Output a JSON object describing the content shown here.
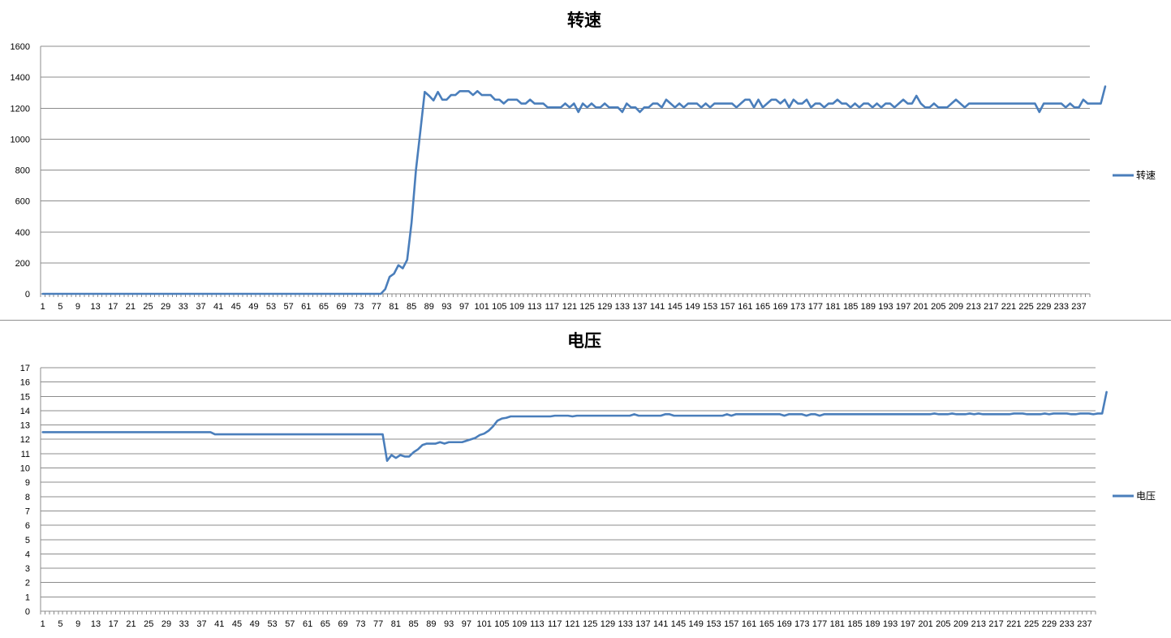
{
  "chart_data": [
    {
      "type": "line",
      "title": "转速",
      "ylim": [
        0,
        1600
      ],
      "yticks": [
        0,
        200,
        400,
        600,
        800,
        1000,
        1200,
        1400,
        1600
      ],
      "x_count": 239,
      "x_tick_step": 4,
      "legend": "right",
      "grid": true,
      "series": [
        {
          "name": "转速",
          "color": "#4a7ebb",
          "values": [
            0,
            0,
            0,
            0,
            0,
            0,
            0,
            0,
            0,
            0,
            0,
            0,
            0,
            0,
            0,
            0,
            0,
            0,
            0,
            0,
            0,
            0,
            0,
            0,
            0,
            0,
            0,
            0,
            0,
            0,
            0,
            0,
            0,
            0,
            0,
            0,
            0,
            0,
            0,
            0,
            0,
            0,
            0,
            0,
            0,
            0,
            0,
            0,
            0,
            0,
            0,
            0,
            0,
            0,
            0,
            0,
            0,
            0,
            0,
            0,
            0,
            0,
            0,
            0,
            0,
            0,
            0,
            0,
            0,
            0,
            0,
            0,
            0,
            0,
            0,
            0,
            0,
            0,
            30,
            110,
            130,
            185,
            165,
            220,
            460,
            800,
            1050,
            1305,
            1280,
            1250,
            1305,
            1255,
            1255,
            1285,
            1285,
            1310,
            1310,
            1310,
            1285,
            1310,
            1285,
            1285,
            1285,
            1255,
            1255,
            1230,
            1255,
            1255,
            1255,
            1230,
            1230,
            1255,
            1230,
            1230,
            1230,
            1205,
            1205,
            1205,
            1205,
            1230,
            1205,
            1230,
            1175,
            1230,
            1205,
            1230,
            1205,
            1205,
            1230,
            1205,
            1205,
            1205,
            1175,
            1230,
            1205,
            1205,
            1175,
            1205,
            1205,
            1230,
            1230,
            1205,
            1255,
            1230,
            1205,
            1230,
            1205,
            1230,
            1230,
            1230,
            1205,
            1230,
            1205,
            1230,
            1230,
            1230,
            1230,
            1230,
            1205,
            1230,
            1255,
            1255,
            1205,
            1255,
            1205,
            1230,
            1255,
            1255,
            1230,
            1255,
            1205,
            1255,
            1230,
            1230,
            1255,
            1205,
            1230,
            1230,
            1205,
            1230,
            1230,
            1255,
            1230,
            1230,
            1205,
            1230,
            1205,
            1230,
            1230,
            1205,
            1230,
            1205,
            1230,
            1230,
            1205,
            1230,
            1255,
            1230,
            1230,
            1280,
            1230,
            1205,
            1205,
            1230,
            1205,
            1205,
            1205,
            1230,
            1255,
            1230,
            1205,
            1230,
            1230,
            1230,
            1230,
            1230,
            1230,
            1230,
            1230,
            1230,
            1230,
            1230,
            1230,
            1230,
            1230,
            1230,
            1230,
            1175,
            1230,
            1230,
            1230,
            1230,
            1230,
            1205,
            1230,
            1205,
            1205,
            1255,
            1230,
            1230,
            1230,
            1230,
            1340
          ]
        }
      ]
    },
    {
      "type": "line",
      "title": "电压",
      "ylim": [
        0,
        17
      ],
      "yticks": [
        0,
        1,
        2,
        3,
        4,
        5,
        6,
        7,
        8,
        9,
        10,
        11,
        12,
        13,
        14,
        15,
        16,
        17
      ],
      "x_count": 239,
      "x_tick_step": 4,
      "legend": "right",
      "grid": true,
      "series": [
        {
          "name": "电压",
          "color": "#4a7ebb",
          "values": [
            12.5,
            12.5,
            12.5,
            12.5,
            12.5,
            12.5,
            12.5,
            12.5,
            12.5,
            12.5,
            12.5,
            12.5,
            12.5,
            12.5,
            12.5,
            12.5,
            12.5,
            12.5,
            12.5,
            12.5,
            12.5,
            12.5,
            12.5,
            12.5,
            12.5,
            12.5,
            12.5,
            12.5,
            12.5,
            12.5,
            12.5,
            12.5,
            12.5,
            12.5,
            12.5,
            12.5,
            12.5,
            12.5,
            12.5,
            12.35,
            12.35,
            12.35,
            12.35,
            12.35,
            12.35,
            12.35,
            12.35,
            12.35,
            12.35,
            12.35,
            12.35,
            12.35,
            12.35,
            12.35,
            12.35,
            12.35,
            12.35,
            12.35,
            12.35,
            12.35,
            12.35,
            12.35,
            12.35,
            12.35,
            12.35,
            12.35,
            12.35,
            12.35,
            12.35,
            12.35,
            12.35,
            12.35,
            12.35,
            12.35,
            12.35,
            12.35,
            12.35,
            12.35,
            10.5,
            10.9,
            10.7,
            10.9,
            10.8,
            10.8,
            11.1,
            11.3,
            11.6,
            11.7,
            11.7,
            11.7,
            11.8,
            11.7,
            11.8,
            11.8,
            11.8,
            11.8,
            11.9,
            12.0,
            12.1,
            12.3,
            12.4,
            12.6,
            12.9,
            13.3,
            13.45,
            13.5,
            13.6,
            13.6,
            13.6,
            13.6,
            13.6,
            13.6,
            13.6,
            13.6,
            13.6,
            13.6,
            13.65,
            13.65,
            13.65,
            13.65,
            13.6,
            13.65,
            13.65,
            13.65,
            13.65,
            13.65,
            13.65,
            13.65,
            13.65,
            13.65,
            13.65,
            13.65,
            13.65,
            13.65,
            13.75,
            13.65,
            13.65,
            13.65,
            13.65,
            13.65,
            13.65,
            13.75,
            13.75,
            13.65,
            13.65,
            13.65,
            13.65,
            13.65,
            13.65,
            13.65,
            13.65,
            13.65,
            13.65,
            13.65,
            13.65,
            13.75,
            13.65,
            13.75,
            13.75,
            13.75,
            13.75,
            13.75,
            13.75,
            13.75,
            13.75,
            13.75,
            13.75,
            13.75,
            13.65,
            13.75,
            13.75,
            13.75,
            13.75,
            13.65,
            13.75,
            13.75,
            13.65,
            13.75,
            13.75,
            13.75,
            13.75,
            13.75,
            13.75,
            13.75,
            13.75,
            13.75,
            13.75,
            13.75,
            13.75,
            13.75,
            13.75,
            13.75,
            13.75,
            13.75,
            13.75,
            13.75,
            13.75,
            13.75,
            13.75,
            13.75,
            13.75,
            13.75,
            13.8,
            13.75,
            13.75,
            13.75,
            13.8,
            13.75,
            13.75,
            13.75,
            13.8,
            13.75,
            13.8,
            13.75,
            13.75,
            13.75,
            13.75,
            13.75,
            13.75,
            13.75,
            13.8,
            13.8,
            13.8,
            13.75,
            13.75,
            13.75,
            13.75,
            13.8,
            13.75,
            13.8,
            13.8,
            13.8,
            13.8,
            13.75,
            13.75,
            13.8,
            13.8,
            13.8,
            13.75,
            13.8,
            13.8,
            15.3
          ]
        }
      ]
    }
  ]
}
